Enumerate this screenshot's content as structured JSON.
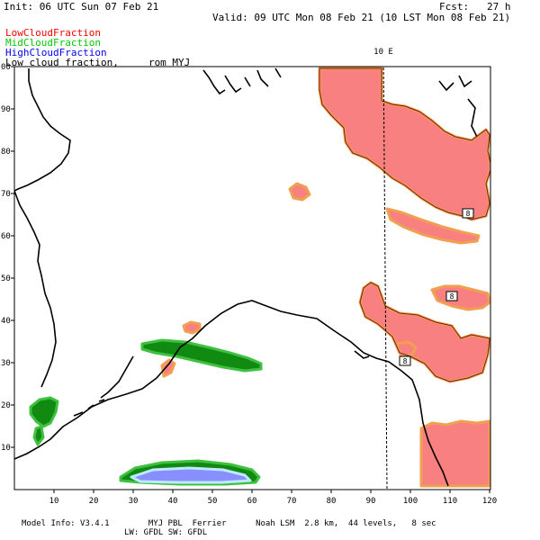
{
  "header": {
    "init": "Init: 06 UTC Sun 07 Feb 21",
    "fcst": "Fcst:   27 h",
    "valid": "Valid: 09 UTC Mon 08 Feb 21 (10 LST Mon 08 Feb 21)"
  },
  "legend": {
    "items": [
      {
        "label": "LowCloudFraction",
        "color": "#ff0000"
      },
      {
        "label": "MidCloudFraction",
        "color": "#00cc00"
      },
      {
        "label": "HighCloudFraction",
        "color": "#0000ff"
      }
    ],
    "note": "Low cloud fraction,     rom MYJ"
  },
  "map": {
    "meridian_label": "10 E",
    "box_label": "8",
    "x_ticks": [
      "10",
      "20",
      "30",
      "40",
      "50",
      "60",
      "70",
      "80",
      "90",
      "100",
      "110",
      "120"
    ],
    "y_ticks": [
      "10",
      "20",
      "30",
      "40",
      "50",
      "60",
      "70",
      "80",
      "90",
      "00"
    ],
    "colors": {
      "low_fill": "#f88080",
      "low_edge": "#f0a050",
      "low_outline": "#7a2010",
      "mid_fill": "#108a10",
      "mid_edge": "#40c040",
      "high_fill": "#8890ff",
      "high_edge": "#c0e8ff",
      "coast": "#000000"
    }
  },
  "footer": {
    "line1": "Model Info: V3.4.1        MYJ PBL  Ferrier      Noah LSM  2.8 km,  44 levels,   8 sec",
    "line2": "LW: GFDL SW: GFDL"
  }
}
